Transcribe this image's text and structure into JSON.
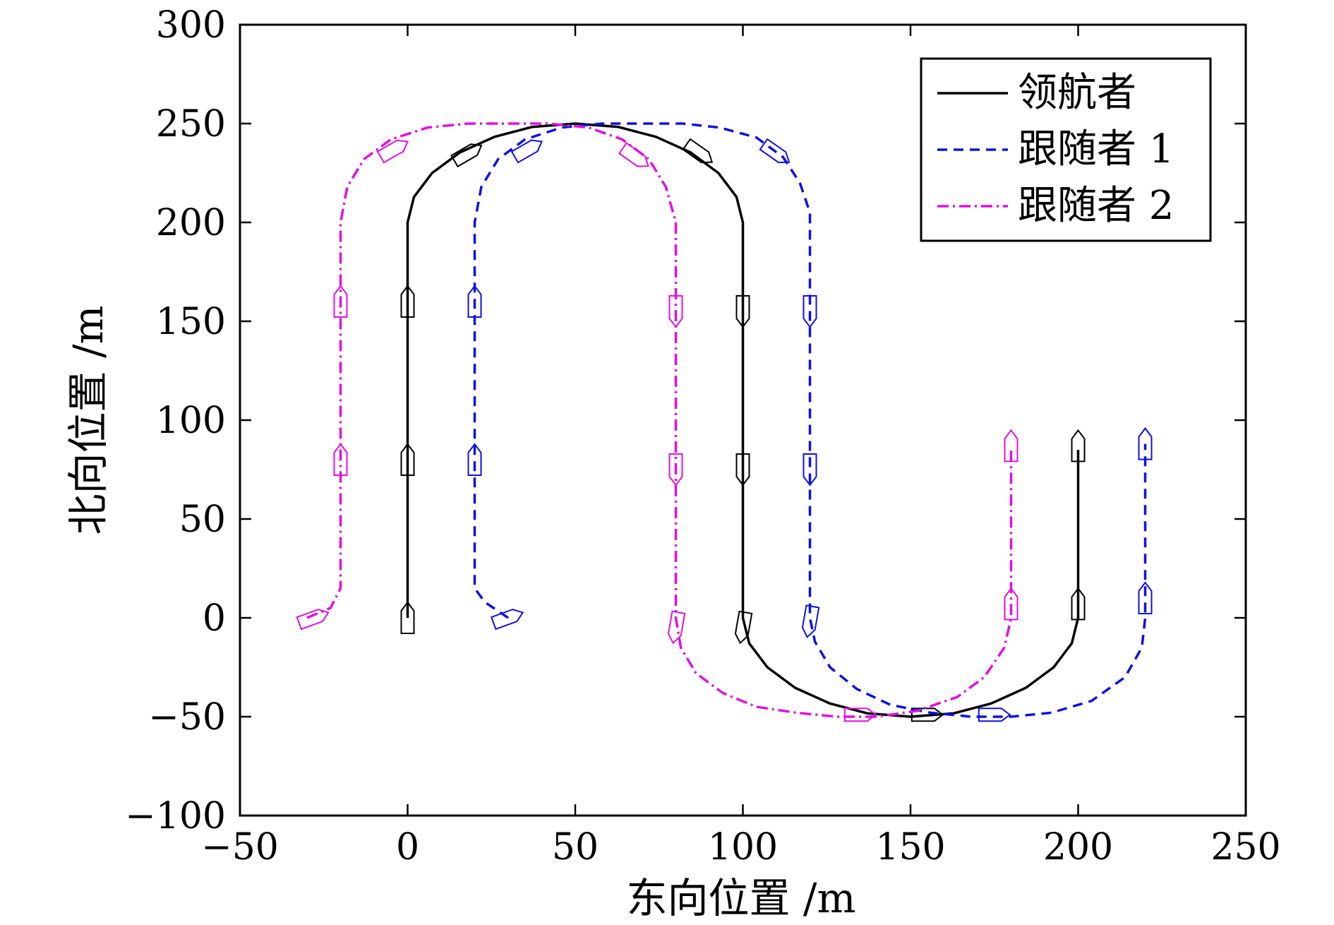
{
  "chart_data": {
    "type": "line",
    "xlabel": "东向位置 /m",
    "ylabel": "北向位置 /m",
    "xlim": [
      -50,
      250
    ],
    "ylim": [
      -100,
      300
    ],
    "xticks": [
      -50,
      0,
      50,
      100,
      150,
      200,
      250
    ],
    "yticks": [
      -100,
      -50,
      0,
      50,
      100,
      150,
      200,
      250,
      300
    ],
    "xtick_labels": [
      "−50",
      "0",
      "50",
      "100",
      "150",
      "200",
      "250"
    ],
    "ytick_labels": [
      "−100",
      "−50",
      "0",
      "50",
      "100",
      "150",
      "200",
      "250",
      "300"
    ],
    "grid": false,
    "legend_position": "top-right",
    "series": [
      {
        "name": "领航者",
        "color": "#000000",
        "dash": "solid",
        "x": [
          0,
          0,
          1.9,
          7.3,
          15.6,
          25.9,
          37.1,
          50,
          62.9,
          74.1,
          84.4,
          92.7,
          98.1,
          100,
          100,
          101.9,
          107.3,
          115.6,
          125.9,
          137.1,
          150,
          162.9,
          174.1,
          184.4,
          192.7,
          198.1,
          200,
          200
        ],
        "y": [
          0,
          200,
          212.9,
          225,
          235.4,
          243.3,
          248.3,
          250,
          248.3,
          243.3,
          235.4,
          225,
          212.9,
          200,
          0,
          -12.9,
          -25,
          -35.4,
          -43.3,
          -48.3,
          -50,
          -48.3,
          -43.3,
          -35.4,
          -25,
          -12.9,
          0,
          85
        ],
        "markers": [
          [
            0,
            0,
            90
          ],
          [
            0,
            80,
            90
          ],
          [
            0,
            160,
            90
          ],
          [
            18,
            235,
            30
          ],
          [
            87,
            235,
            -35
          ],
          [
            100,
            155,
            -90
          ],
          [
            100,
            75,
            -90
          ],
          [
            100,
            -5,
            -100
          ],
          [
            155,
            -49,
            0
          ],
          [
            200,
            7,
            90
          ],
          [
            200,
            87,
            90
          ]
        ]
      },
      {
        "name": "跟随者 1",
        "color": "#1010e0",
        "dash": "dash",
        "x": [
          30,
          23,
          20,
          20,
          22,
          27,
          35,
          46,
          58,
          70,
          82,
          93,
          104,
          112,
          117,
          120,
          120,
          121.5,
          126,
          134,
          144,
          156,
          168,
          180,
          192,
          204,
          214,
          219,
          220,
          220
        ],
        "y": [
          0,
          8,
          15,
          200,
          218,
          232,
          242,
          248,
          250,
          250,
          250,
          248,
          243,
          233,
          220,
          205,
          0,
          -12,
          -25,
          -36,
          -44,
          -48,
          -50,
          -50,
          -48,
          -42,
          -30,
          -15,
          0,
          88
        ],
        "markers": [
          [
            30,
            0,
            20
          ],
          [
            20,
            80,
            90
          ],
          [
            20,
            160,
            90
          ],
          [
            36,
            237,
            30
          ],
          [
            110,
            235,
            -35
          ],
          [
            120,
            155,
            -90
          ],
          [
            120,
            75,
            -90
          ],
          [
            120,
            -2,
            -100
          ],
          [
            175,
            -49,
            0
          ],
          [
            220,
            10,
            90
          ],
          [
            220,
            88,
            90
          ]
        ]
      },
      {
        "name": "跟随者 2",
        "color": "#e010e0",
        "dash": "dashdot",
        "x": [
          -30,
          -23,
          -20,
          -20,
          -18,
          -13,
          -5,
          6,
          18,
          30,
          42,
          54,
          64,
          72,
          77,
          80,
          80,
          81.5,
          86,
          94,
          104,
          116,
          128,
          140,
          152,
          164,
          172,
          178,
          180,
          180
        ],
        "y": [
          0,
          5,
          15,
          200,
          218,
          232,
          242,
          248,
          250,
          250,
          250,
          248,
          242,
          232,
          218,
          200,
          0,
          -15,
          -28,
          -38,
          -45,
          -48,
          -50,
          -50,
          -47,
          -40,
          -30,
          -15,
          0,
          85
        ],
        "markers": [
          [
            -28,
            0,
            20
          ],
          [
            -20,
            80,
            90
          ],
          [
            -20,
            160,
            90
          ],
          [
            -4,
            237,
            30
          ],
          [
            68,
            233,
            -35
          ],
          [
            80,
            155,
            -90
          ],
          [
            80,
            75,
            -90
          ],
          [
            80,
            -5,
            -100
          ],
          [
            135,
            -49,
            0
          ],
          [
            180,
            7,
            90
          ],
          [
            180,
            87,
            90
          ]
        ]
      }
    ]
  }
}
